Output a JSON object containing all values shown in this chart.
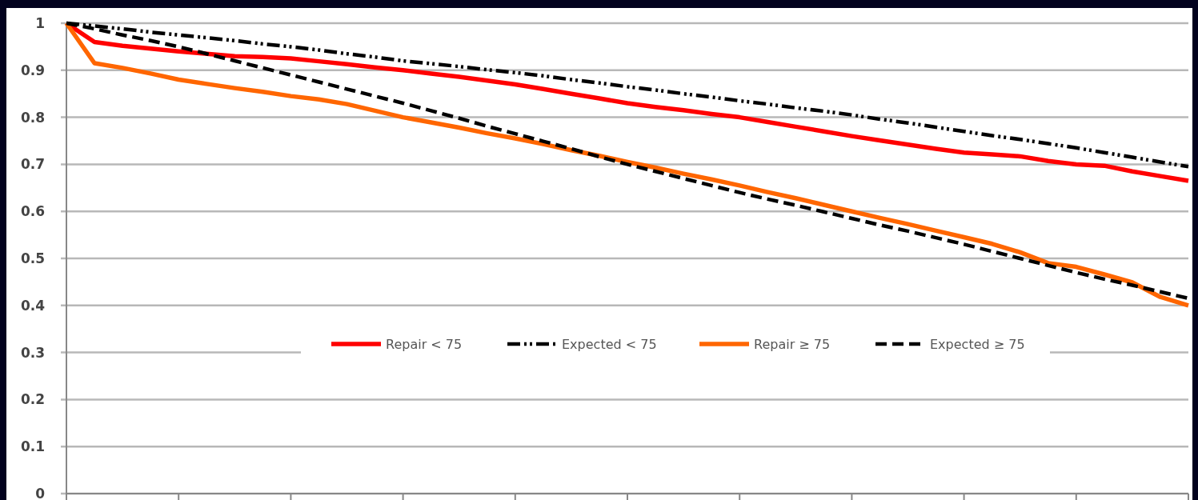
{
  "chart_data": {
    "type": "line",
    "categories": [
      null,
      null,
      null,
      null,
      null,
      null,
      null,
      null,
      null,
      null,
      null,
      null,
      null,
      null,
      null,
      null,
      null,
      null,
      null,
      null,
      null,
      null,
      null,
      null,
      null,
      null,
      null,
      null,
      null,
      null,
      null,
      null,
      null,
      null,
      null,
      null,
      null,
      null,
      null,
      null,
      null
    ],
    "ylim": [
      0,
      1
    ],
    "yticks": [
      0,
      0.1,
      0.2,
      0.3,
      0.4,
      0.5,
      0.6,
      0.7,
      0.8,
      0.9,
      1
    ],
    "tick_labels": "y",
    "grid": "y",
    "legend": "center",
    "marker": "none",
    "series": [
      {
        "name": "Repair < 75",
        "color": "#ff0000",
        "line_style": "solid",
        "values": [
          1.0,
          0.96,
          0.952,
          0.946,
          0.94,
          0.935,
          0.93,
          0.928,
          0.925,
          0.919,
          0.913,
          0.906,
          0.9,
          0.893,
          0.886,
          0.878,
          0.87,
          0.86,
          0.85,
          0.84,
          0.83,
          0.822,
          0.815,
          0.807,
          0.8,
          0.79,
          0.78,
          0.77,
          0.76,
          0.751,
          0.742,
          0.733,
          0.725,
          0.721,
          0.717,
          0.707,
          0.7,
          0.697,
          0.685,
          0.675,
          0.665
        ]
      },
      {
        "name": "Expected < 75",
        "color": "#000000",
        "line_style": "dashdotdot",
        "values": [
          1.0,
          0.994,
          0.988,
          0.981,
          0.975,
          0.969,
          0.963,
          0.956,
          0.95,
          0.943,
          0.935,
          0.928,
          0.92,
          0.914,
          0.908,
          0.901,
          0.895,
          0.888,
          0.88,
          0.873,
          0.865,
          0.858,
          0.85,
          0.843,
          0.835,
          0.828,
          0.82,
          0.813,
          0.805,
          0.796,
          0.788,
          0.779,
          0.77,
          0.761,
          0.753,
          0.744,
          0.735,
          0.725,
          0.715,
          0.705,
          0.695
        ]
      },
      {
        "name": "Repair ≥ 75",
        "color": "#ff6600",
        "line_style": "solid",
        "values": [
          1.0,
          0.915,
          0.905,
          0.893,
          0.88,
          0.871,
          0.862,
          0.854,
          0.845,
          0.838,
          0.828,
          0.814,
          0.8,
          0.789,
          0.778,
          0.766,
          0.755,
          0.743,
          0.73,
          0.718,
          0.705,
          0.693,
          0.68,
          0.668,
          0.655,
          0.641,
          0.628,
          0.614,
          0.6,
          0.586,
          0.573,
          0.559,
          0.545,
          0.531,
          0.513,
          0.49,
          0.482,
          0.466,
          0.449,
          0.418,
          0.4
        ]
      },
      {
        "name": "Expected ≥ 75",
        "color": "#000000",
        "line_style": "dashed",
        "values": [
          1.0,
          0.988,
          0.975,
          0.963,
          0.95,
          0.935,
          0.92,
          0.905,
          0.89,
          0.875,
          0.86,
          0.845,
          0.83,
          0.814,
          0.798,
          0.781,
          0.765,
          0.749,
          0.733,
          0.716,
          0.7,
          0.685,
          0.67,
          0.655,
          0.64,
          0.626,
          0.613,
          0.599,
          0.585,
          0.571,
          0.558,
          0.544,
          0.53,
          0.515,
          0.5,
          0.485,
          0.47,
          0.456,
          0.443,
          0.429,
          0.415
        ]
      }
    ]
  }
}
